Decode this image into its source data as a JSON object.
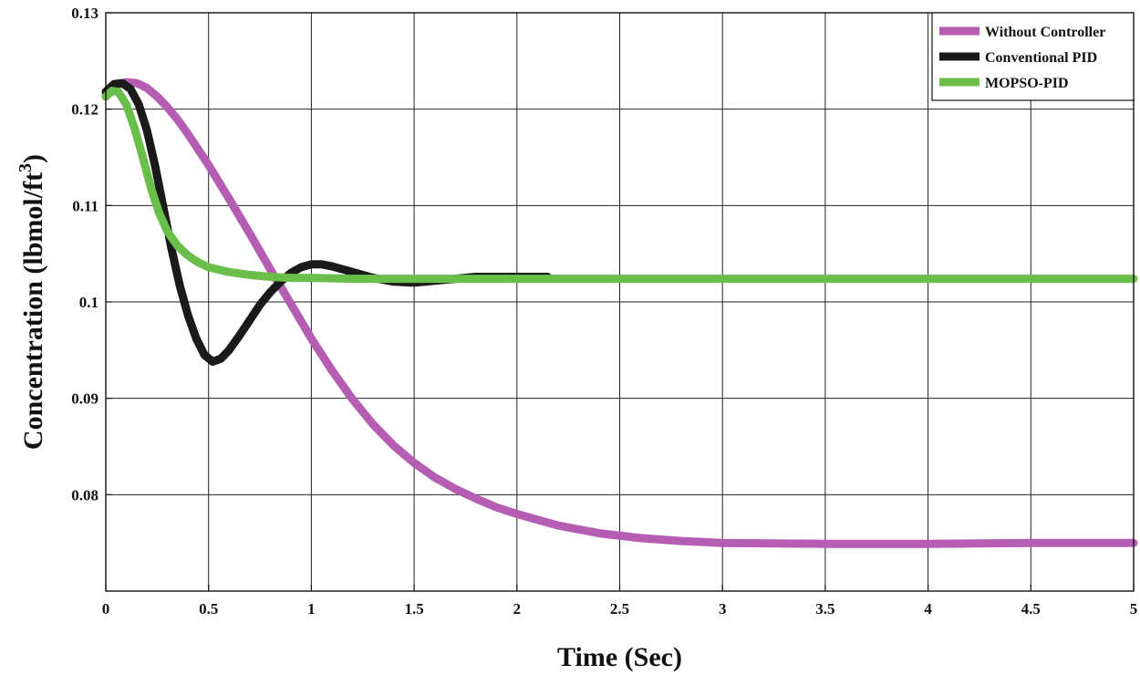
{
  "chart_data": {
    "type": "line",
    "title": "",
    "xlabel": "Time (Sec)",
    "ylabel_main": "Concentration (lbmol/ft",
    "ylabel_sup": "3",
    "ylabel_close": ")",
    "xlim": [
      0,
      5
    ],
    "ylim": [
      0.07,
      0.13
    ],
    "xticks": [
      0,
      0.5,
      1,
      1.5,
      2,
      2.5,
      3,
      3.5,
      4,
      4.5,
      5
    ],
    "xtick_labels": [
      "0",
      "0.5",
      "1",
      "1.5",
      "2",
      "2.5",
      "3",
      "3.5",
      "4",
      "4.5",
      "5"
    ],
    "yticks": [
      0.08,
      0.09,
      0.1,
      0.11,
      0.12,
      0.13
    ],
    "ytick_labels": [
      "0.08",
      "0.09",
      "0.1",
      "0.11",
      "0.12",
      "0.13"
    ],
    "grid": true,
    "legend_position": "top-right",
    "series": [
      {
        "name": "Without Controller",
        "color": "#b55db2",
        "x": [
          0,
          0.05,
          0.1,
          0.15,
          0.2,
          0.25,
          0.3,
          0.35,
          0.4,
          0.45,
          0.5,
          0.6,
          0.7,
          0.8,
          0.9,
          1.0,
          1.1,
          1.2,
          1.3,
          1.4,
          1.5,
          1.6,
          1.7,
          1.8,
          1.9,
          2.0,
          2.2,
          2.4,
          2.6,
          2.8,
          3.0,
          3.5,
          4.0,
          4.5,
          5.0
        ],
        "y": [
          0.1215,
          0.1225,
          0.1228,
          0.1227,
          0.1222,
          0.1213,
          0.1202,
          0.1189,
          0.1174,
          0.1158,
          0.1142,
          0.1107,
          0.1071,
          0.1034,
          0.0998,
          0.0962,
          0.0929,
          0.0899,
          0.0873,
          0.0851,
          0.0833,
          0.0818,
          0.0806,
          0.0796,
          0.0787,
          0.078,
          0.0768,
          0.076,
          0.0755,
          0.0752,
          0.075,
          0.0749,
          0.0749,
          0.075,
          0.075
        ]
      },
      {
        "name": "Conventional PID",
        "color": "#1a1a1a",
        "x": [
          0,
          0.04,
          0.08,
          0.12,
          0.16,
          0.2,
          0.24,
          0.28,
          0.32,
          0.36,
          0.4,
          0.44,
          0.48,
          0.52,
          0.56,
          0.6,
          0.65,
          0.7,
          0.75,
          0.8,
          0.85,
          0.9,
          0.95,
          1.0,
          1.05,
          1.1,
          1.2,
          1.3,
          1.4,
          1.5,
          1.6,
          1.7,
          1.8,
          2.0,
          2.15
        ],
        "y": [
          0.1218,
          0.1226,
          0.1227,
          0.1221,
          0.1205,
          0.1178,
          0.1141,
          0.1098,
          0.1055,
          0.1017,
          0.0986,
          0.0962,
          0.0945,
          0.0938,
          0.0941,
          0.095,
          0.0965,
          0.0981,
          0.0997,
          0.101,
          0.1021,
          0.103,
          0.1036,
          0.1039,
          0.1039,
          0.1037,
          0.1031,
          0.1025,
          0.1021,
          0.102,
          0.1022,
          0.1024,
          0.1026,
          0.1026,
          0.1026
        ]
      },
      {
        "name": "MOPSO-PID",
        "color": "#6abf4b",
        "x": [
          0,
          0.03,
          0.06,
          0.1,
          0.14,
          0.18,
          0.22,
          0.26,
          0.3,
          0.35,
          0.4,
          0.45,
          0.5,
          0.6,
          0.7,
          0.8,
          0.9,
          1.0,
          1.2,
          1.5,
          2.0,
          3.0,
          4.0,
          5.0
        ],
        "y": [
          0.1213,
          0.1219,
          0.1218,
          0.1205,
          0.118,
          0.115,
          0.1118,
          0.1092,
          0.1073,
          0.1058,
          0.1048,
          0.1041,
          0.1036,
          0.1031,
          0.1028,
          0.1026,
          0.1025,
          0.1025,
          0.1024,
          0.1024,
          0.1024,
          0.1024,
          0.1024,
          0.1024
        ]
      }
    ]
  }
}
